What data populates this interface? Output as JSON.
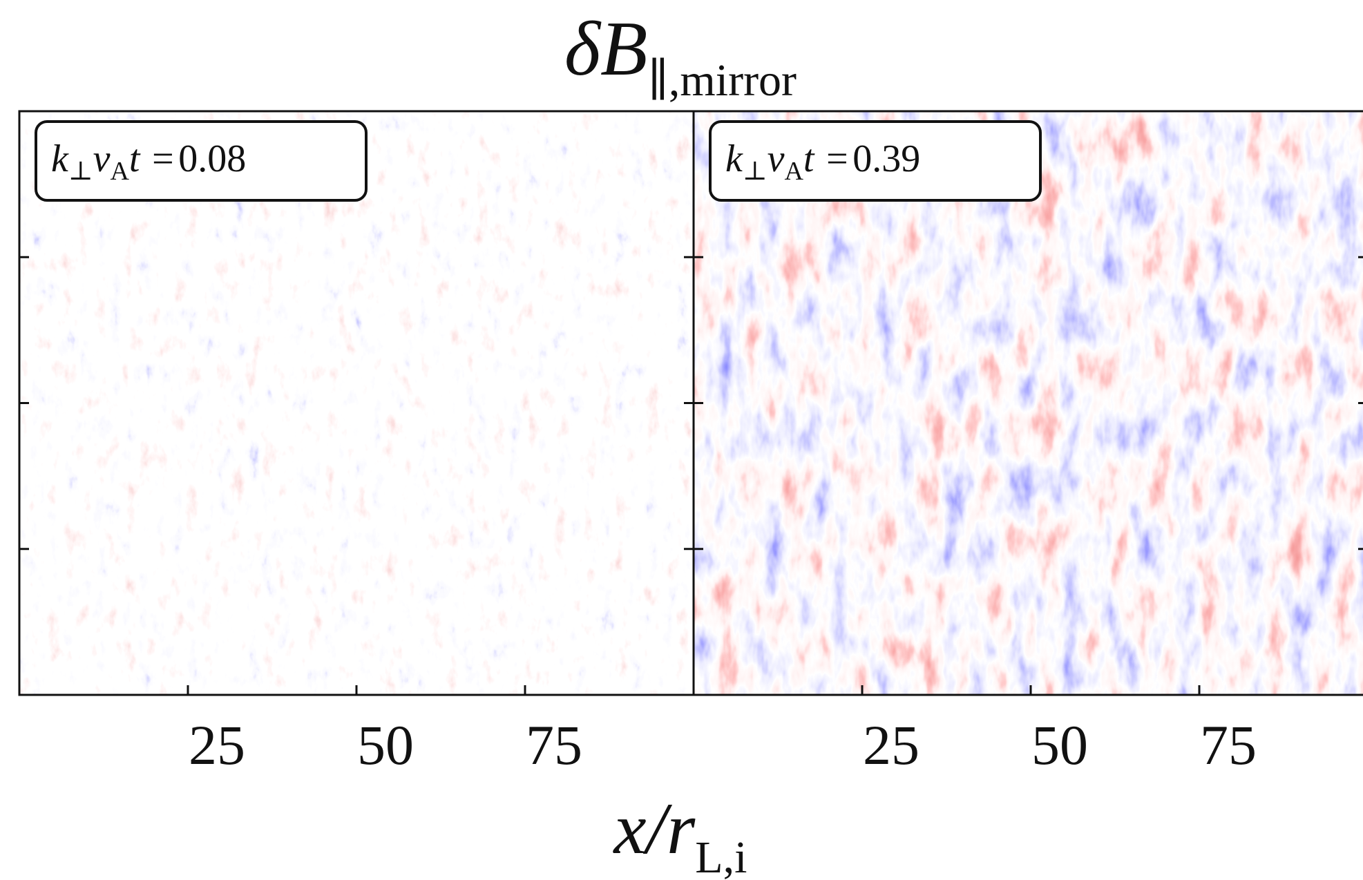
{
  "chart_data": {
    "type": "heatmap",
    "title": {
      "main": "δB",
      "subscript": "∥,mirror"
    },
    "xlabel": {
      "main": "x/r",
      "subscript": "L,i"
    },
    "annotation_label": [
      "k",
      "⊥",
      "v",
      "A",
      "t ="
    ],
    "panels": [
      {
        "time": 0.08
      },
      {
        "time": 0.39
      }
    ],
    "xlim": [
      0,
      100
    ],
    "xticks": [
      25,
      50,
      75
    ],
    "ylim": [
      0,
      100
    ],
    "yticks": [
      25,
      50,
      75
    ],
    "show_ytick_labels": false,
    "colormap": "bwr"
  }
}
